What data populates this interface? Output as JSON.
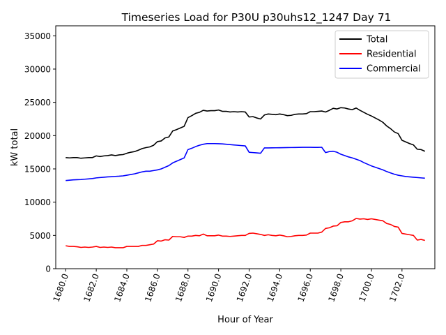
{
  "chart_data": {
    "type": "line",
    "title": "Timeseries Load for P30U p30uhs12_1247  Day 71",
    "xlabel": "Hour of Year",
    "ylabel": "kW total",
    "xlim": [
      1679.35,
      1704.15
    ],
    "ylim": [
      0,
      36500
    ],
    "xticks": [
      1680,
      1682,
      1684,
      1686,
      1688,
      1690,
      1692,
      1694,
      1696,
      1698,
      1700,
      1702
    ],
    "xtick_labels": [
      "1680.0",
      "1682.0",
      "1684.0",
      "1686.0",
      "1688.0",
      "1690.0",
      "1692.0",
      "1694.0",
      "1696.0",
      "1698.0",
      "1700.0",
      "1702.0"
    ],
    "yticks": [
      0,
      5000,
      10000,
      15000,
      20000,
      25000,
      30000,
      35000
    ],
    "ytick_labels": [
      "0",
      "5000",
      "10000",
      "15000",
      "20000",
      "25000",
      "30000",
      "35000"
    ],
    "legend_position": "top-right",
    "grid": false,
    "series": [
      {
        "name": "Total",
        "color": "#000000",
        "x": [
          1680.0,
          1680.25,
          1680.5,
          1680.75,
          1681.0,
          1681.25,
          1681.5,
          1681.75,
          1682.0,
          1682.25,
          1682.5,
          1682.75,
          1683.0,
          1683.25,
          1683.5,
          1683.75,
          1684.0,
          1684.25,
          1684.5,
          1684.75,
          1685.0,
          1685.25,
          1685.5,
          1685.75,
          1686.0,
          1686.25,
          1686.5,
          1686.75,
          1687.0,
          1687.25,
          1687.5,
          1687.75,
          1688.0,
          1688.25,
          1688.5,
          1688.75,
          1689.0,
          1689.25,
          1689.5,
          1689.75,
          1690.0,
          1690.25,
          1690.5,
          1690.75,
          1691.0,
          1691.25,
          1691.5,
          1691.75,
          1692.0,
          1692.25,
          1692.5,
          1692.75,
          1693.0,
          1693.25,
          1693.5,
          1693.75,
          1694.0,
          1694.25,
          1694.5,
          1694.75,
          1695.0,
          1695.25,
          1695.5,
          1695.75,
          1696.0,
          1696.25,
          1696.5,
          1696.75,
          1697.0,
          1697.25,
          1697.5,
          1697.75,
          1698.0,
          1698.25,
          1698.5,
          1698.75,
          1699.0,
          1699.25,
          1699.5,
          1699.75,
          1700.0,
          1700.25,
          1700.5,
          1700.75,
          1701.0,
          1701.25,
          1701.5,
          1701.75,
          1702.0,
          1702.25,
          1702.5,
          1702.75,
          1703.0,
          1703.25,
          1703.5
        ],
        "values": [
          16700,
          16650,
          16700,
          16700,
          16600,
          16650,
          16700,
          16700,
          16950,
          16850,
          16950,
          17000,
          17100,
          17000,
          17100,
          17150,
          17350,
          17500,
          17600,
          17800,
          18050,
          18200,
          18300,
          18550,
          19100,
          19200,
          19650,
          19800,
          20700,
          20900,
          21150,
          21400,
          22700,
          23000,
          23350,
          23500,
          23800,
          23700,
          23750,
          23750,
          23850,
          23650,
          23650,
          23550,
          23600,
          23550,
          23600,
          23550,
          22800,
          22850,
          22650,
          22500,
          23100,
          23250,
          23200,
          23150,
          23250,
          23150,
          23000,
          23050,
          23200,
          23250,
          23250,
          23300,
          23600,
          23600,
          23650,
          23700,
          23550,
          23800,
          24100,
          24000,
          24200,
          24150,
          24000,
          23900,
          24150,
          23800,
          23500,
          23200,
          22950,
          22650,
          22350,
          22000,
          21450,
          21050,
          20550,
          20300,
          19300,
          19050,
          18800,
          18600,
          17950,
          17900,
          17650
        ]
      },
      {
        "name": "Residential",
        "color": "#ff0000",
        "x": [
          1680.0,
          1680.25,
          1680.5,
          1680.75,
          1681.0,
          1681.25,
          1681.5,
          1681.75,
          1682.0,
          1682.25,
          1682.5,
          1682.75,
          1683.0,
          1683.25,
          1683.5,
          1683.75,
          1684.0,
          1684.25,
          1684.5,
          1684.75,
          1685.0,
          1685.25,
          1685.5,
          1685.75,
          1686.0,
          1686.25,
          1686.5,
          1686.75,
          1687.0,
          1687.25,
          1687.5,
          1687.75,
          1688.0,
          1688.25,
          1688.5,
          1688.75,
          1689.0,
          1689.25,
          1689.5,
          1689.75,
          1690.0,
          1690.25,
          1690.5,
          1690.75,
          1691.0,
          1691.25,
          1691.5,
          1691.75,
          1692.0,
          1692.25,
          1692.5,
          1692.75,
          1693.0,
          1693.25,
          1693.5,
          1693.75,
          1694.0,
          1694.25,
          1694.5,
          1694.75,
          1695.0,
          1695.25,
          1695.5,
          1695.75,
          1696.0,
          1696.25,
          1696.5,
          1696.75,
          1697.0,
          1697.25,
          1697.5,
          1697.75,
          1698.0,
          1698.25,
          1698.5,
          1698.75,
          1699.0,
          1699.25,
          1699.5,
          1699.75,
          1700.0,
          1700.25,
          1700.5,
          1700.75,
          1701.0,
          1701.25,
          1701.5,
          1701.75,
          1702.0,
          1702.25,
          1702.5,
          1702.75,
          1703.0,
          1703.25,
          1703.5
        ],
        "values": [
          3450,
          3350,
          3350,
          3300,
          3200,
          3250,
          3200,
          3250,
          3350,
          3200,
          3250,
          3200,
          3250,
          3150,
          3150,
          3150,
          3350,
          3350,
          3350,
          3350,
          3500,
          3500,
          3600,
          3700,
          4200,
          4150,
          4350,
          4300,
          4850,
          4800,
          4800,
          4700,
          4900,
          4900,
          5000,
          4950,
          5200,
          4950,
          4950,
          4950,
          5050,
          4900,
          4900,
          4850,
          4900,
          4950,
          5000,
          5000,
          5300,
          5350,
          5250,
          5150,
          5000,
          5100,
          5000,
          4950,
          5050,
          4950,
          4800,
          4850,
          4950,
          5000,
          5000,
          5050,
          5350,
          5350,
          5350,
          5500,
          6050,
          6150,
          6400,
          6450,
          6950,
          7050,
          7050,
          7200,
          7550,
          7450,
          7500,
          7400,
          7500,
          7400,
          7300,
          7200,
          6800,
          6650,
          6350,
          6250,
          5300,
          5200,
          5100,
          5000,
          4300,
          4400,
          4250
        ]
      },
      {
        "name": "Commercial",
        "color": "#0000ff",
        "x": [
          1680.0,
          1680.25,
          1680.5,
          1680.75,
          1681.0,
          1681.25,
          1681.5,
          1681.75,
          1682.0,
          1682.25,
          1682.5,
          1682.75,
          1683.0,
          1683.25,
          1683.5,
          1683.75,
          1684.0,
          1684.25,
          1684.5,
          1684.75,
          1685.0,
          1685.25,
          1685.5,
          1685.75,
          1686.0,
          1686.25,
          1686.5,
          1686.75,
          1687.0,
          1687.25,
          1687.5,
          1687.75,
          1688.0,
          1688.25,
          1688.5,
          1688.75,
          1689.0,
          1689.25,
          1689.5,
          1689.75,
          1690.0,
          1690.25,
          1690.5,
          1690.75,
          1691.0,
          1691.25,
          1691.5,
          1691.75,
          1692.0,
          1692.25,
          1692.5,
          1692.75,
          1693.0,
          1693.25,
          1693.5,
          1693.75,
          1694.0,
          1694.25,
          1694.5,
          1694.75,
          1695.0,
          1695.25,
          1695.5,
          1695.75,
          1696.0,
          1696.25,
          1696.5,
          1696.75,
          1697.0,
          1697.25,
          1697.5,
          1697.75,
          1698.0,
          1698.25,
          1698.5,
          1698.75,
          1699.0,
          1699.25,
          1699.5,
          1699.75,
          1700.0,
          1700.25,
          1700.5,
          1700.75,
          1701.0,
          1701.25,
          1701.5,
          1701.75,
          1702.0,
          1702.25,
          1702.5,
          1702.75,
          1703.0,
          1703.25,
          1703.5
        ],
        "values": [
          13250,
          13300,
          13350,
          13380,
          13400,
          13450,
          13500,
          13550,
          13650,
          13700,
          13750,
          13800,
          13830,
          13870,
          13900,
          13950,
          14050,
          14150,
          14250,
          14400,
          14550,
          14650,
          14650,
          14750,
          14850,
          15000,
          15250,
          15500,
          15900,
          16150,
          16400,
          16650,
          17900,
          18100,
          18350,
          18550,
          18700,
          18800,
          18800,
          18800,
          18780,
          18750,
          18700,
          18650,
          18600,
          18550,
          18500,
          18450,
          17500,
          17450,
          17400,
          17350,
          18150,
          18150,
          18160,
          18170,
          18180,
          18190,
          18200,
          18210,
          18220,
          18230,
          18240,
          18240,
          18240,
          18230,
          18230,
          18250,
          17450,
          17600,
          17650,
          17500,
          17200,
          17000,
          16800,
          16650,
          16450,
          16250,
          15950,
          15700,
          15450,
          15250,
          15050,
          14850,
          14600,
          14400,
          14200,
          14050,
          13950,
          13850,
          13800,
          13750,
          13700,
          13650,
          13600
        ]
      }
    ]
  }
}
